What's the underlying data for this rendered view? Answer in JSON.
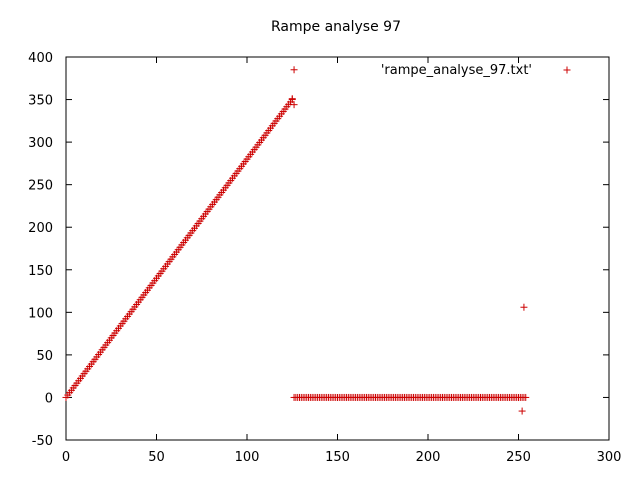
{
  "chart_data": {
    "type": "scatter",
    "title": "Rampe analyse 97",
    "xlabel": "",
    "ylabel": "",
    "xlim": [
      0,
      300
    ],
    "ylim": [
      -50,
      400
    ],
    "xticks": [
      0,
      50,
      100,
      150,
      200,
      250,
      300
    ],
    "yticks": [
      -50,
      0,
      50,
      100,
      150,
      200,
      250,
      300,
      350,
      400
    ],
    "grid": false,
    "legend_position": "top-right",
    "marker": "plus",
    "series": [
      {
        "name": "'rampe_analyse_97.txt'",
        "color": "#cc0000",
        "points": {
          "ramp": {
            "x_from": 0,
            "x_to": 125,
            "step": 1,
            "slope": 2.8,
            "intercept": 0
          },
          "zero_run": {
            "x_from": 126,
            "x_to": 254,
            "step": 1,
            "y": 0
          },
          "extra": [
            [
              125,
              351
            ],
            [
              126,
              385
            ],
            [
              126,
              344
            ],
            [
              253,
              106
            ],
            [
              252,
              -16
            ]
          ]
        }
      }
    ]
  }
}
